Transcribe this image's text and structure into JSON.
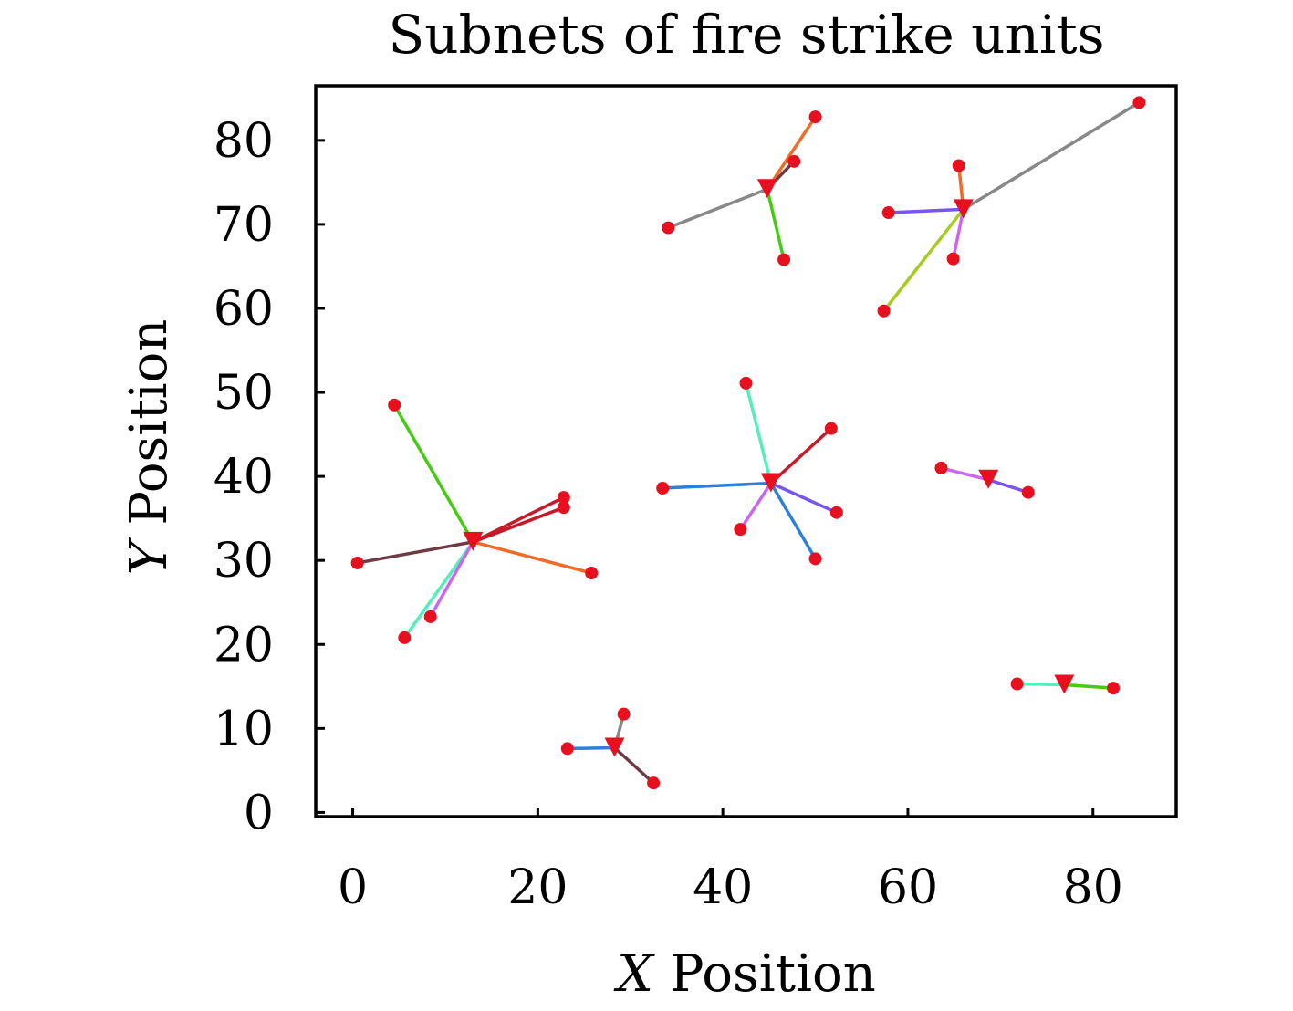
{
  "chart_data": {
    "type": "scatter",
    "title": "Subnets of fire strike units",
    "xlabel_var": "X",
    "xlabel_text": "Position",
    "ylabel_var": "Y",
    "ylabel_text": "Position",
    "xlim": [
      -4,
      89
    ],
    "ylim": [
      -0.5,
      86.5
    ],
    "x_ticks": [
      0,
      20,
      40,
      60,
      80
    ],
    "y_ticks": [
      0,
      10,
      20,
      30,
      40,
      50,
      60,
      70,
      80
    ],
    "grid": false,
    "marker_color": "#e8101e",
    "subnets": [
      {
        "hub": [
          13,
          32.2
        ],
        "nodes": [
          {
            "x": 4.5,
            "y": 48.5,
            "color": "#44cc11"
          },
          {
            "x": 22.8,
            "y": 37.5,
            "color": "#c41a2a"
          },
          {
            "x": 22.8,
            "y": 36.3,
            "color": "#c41a2a"
          },
          {
            "x": 0.5,
            "y": 29.7,
            "color": "#6e3a44"
          },
          {
            "x": 25.8,
            "y": 28.5,
            "color": "#f06a28"
          },
          {
            "x": 5.6,
            "y": 20.8,
            "color": "#55eebb"
          },
          {
            "x": 8.4,
            "y": 23.3,
            "color": "#cc66ee"
          }
        ]
      },
      {
        "hub": [
          28.3,
          7.7
        ],
        "nodes": [
          {
            "x": 23.2,
            "y": 7.6,
            "color": "#2f7fd6"
          },
          {
            "x": 29.3,
            "y": 11.7,
            "color": "#888888"
          },
          {
            "x": 32.5,
            "y": 3.5,
            "color": "#6e3a44"
          }
        ]
      },
      {
        "hub": [
          45.2,
          39.2
        ],
        "nodes": [
          {
            "x": 33.5,
            "y": 38.6,
            "color": "#2f7fd6"
          },
          {
            "x": 42.5,
            "y": 51.1,
            "color": "#55eebb"
          },
          {
            "x": 51.7,
            "y": 45.7,
            "color": "#c41a2a"
          },
          {
            "x": 52.3,
            "y": 35.7,
            "color": "#7755ee"
          },
          {
            "x": 50,
            "y": 30.2,
            "color": "#2f7fd6"
          },
          {
            "x": 41.9,
            "y": 33.7,
            "color": "#cc66ee"
          }
        ]
      },
      {
        "hub": [
          44.8,
          74.2
        ],
        "nodes": [
          {
            "x": 34.1,
            "y": 69.6,
            "color": "#888888"
          },
          {
            "x": 50,
            "y": 82.8,
            "color": "#f06a28"
          },
          {
            "x": 47.7,
            "y": 77.5,
            "color": "#6e3a44"
          },
          {
            "x": 46.6,
            "y": 65.8,
            "color": "#44cc11"
          }
        ]
      },
      {
        "hub": [
          66,
          71.8
        ],
        "nodes": [
          {
            "x": 85,
            "y": 84.5,
            "color": "#888888"
          },
          {
            "x": 65.5,
            "y": 77,
            "color": "#f06a28"
          },
          {
            "x": 57.9,
            "y": 71.4,
            "color": "#7755ee"
          },
          {
            "x": 64.9,
            "y": 65.9,
            "color": "#cc66ee"
          },
          {
            "x": 57.4,
            "y": 59.7,
            "color": "#a6cc22"
          }
        ]
      },
      {
        "hub": [
          68.7,
          39.6
        ],
        "nodes": [
          {
            "x": 63.6,
            "y": 41,
            "color": "#cc66ee"
          },
          {
            "x": 73,
            "y": 38.1,
            "color": "#7755ee"
          }
        ]
      },
      {
        "hub": [
          76.9,
          15.2
        ],
        "nodes": [
          {
            "x": 71.8,
            "y": 15.3,
            "color": "#55eebb"
          },
          {
            "x": 82.2,
            "y": 14.8,
            "color": "#44cc11"
          }
        ]
      }
    ]
  }
}
